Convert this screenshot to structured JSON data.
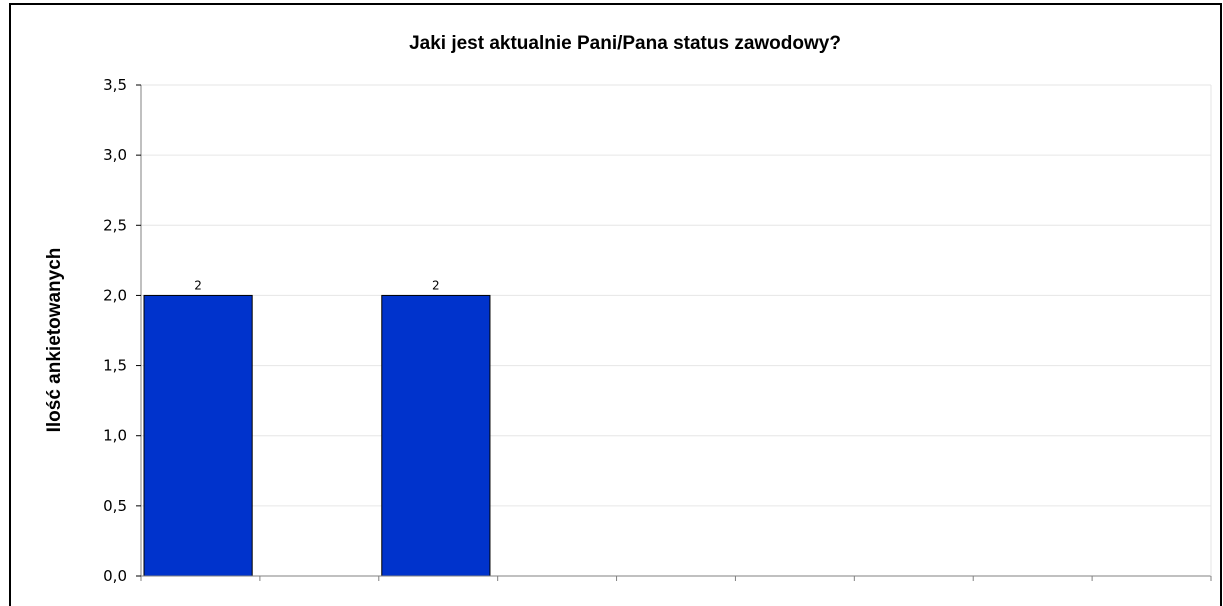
{
  "chart_data": {
    "type": "bar",
    "title": "Jaki jest aktualnie Pani/Pana status zawodowy?",
    "xlabel": "",
    "ylabel": "Ilość ankietowanych",
    "categories": [
      "",
      "",
      "",
      "",
      "",
      "",
      "",
      "",
      ""
    ],
    "values": [
      2,
      0,
      2,
      0,
      0,
      0,
      0,
      0,
      0
    ],
    "data_labels": [
      "2",
      "",
      "2",
      "",
      "",
      "",
      "",
      "",
      ""
    ],
    "ylim": [
      0,
      3.5
    ],
    "yticks": [
      "0,0",
      "0,5",
      "1,0",
      "1,5",
      "2,0",
      "2,5",
      "3,0",
      "3,5"
    ],
    "grid": true,
    "bar_color": "#0033cc",
    "bar_edge_color": "#000000",
    "grid_color": "#e6e6e6"
  }
}
